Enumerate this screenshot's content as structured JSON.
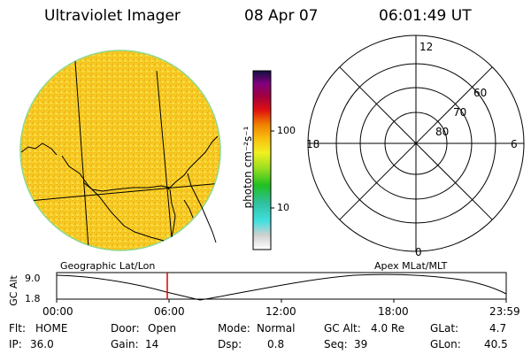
{
  "header": {
    "title": "Ultraviolet Imager",
    "date": "08 Apr 07",
    "time": "06:01:49 UT"
  },
  "colorbar": {
    "unit_label": "photon cm⁻²s⁻¹",
    "ticks": [
      "100",
      "10"
    ]
  },
  "polar_plot": {
    "mlt_labels": {
      "top": "12",
      "right": "6",
      "bottom": "0",
      "left": "18"
    },
    "lat_labels": [
      "60",
      "70",
      "80"
    ]
  },
  "panel_labels": {
    "left": "Geographic Lat/Lon",
    "right": "Apex MLat/MLT"
  },
  "altitude_plot": {
    "ylabel": "GC Alt",
    "y_ticks": [
      "9.0",
      "1.8"
    ],
    "x_ticks": [
      "00:00",
      "06:00",
      "12:00",
      "18:00",
      "23:59"
    ],
    "marker_color": "#e00000"
  },
  "info": {
    "row1": {
      "flt_label": "Flt:",
      "flt_value": "HOME",
      "door_label": "Door:",
      "door_value": "Open",
      "mode_label": "Mode:",
      "mode_value": "Normal",
      "gcalt_label": "GC Alt:",
      "gcalt_value": "4.0 Re",
      "glat_label": "GLat:",
      "glat_value": "4.7"
    },
    "row2": {
      "ip_label": "IP:",
      "ip_value": "36.0",
      "gain_label": "Gain:",
      "gain_value": "14",
      "dsp_label": "Dsp:",
      "dsp_value": "0.8",
      "seq_label": "Seq:",
      "seq_value": "39",
      "glon_label": "GLon:",
      "glon_value": "40.5"
    }
  },
  "colors": {
    "disk_base": "#f5c81c",
    "disk_rim": "#8fd98f"
  }
}
